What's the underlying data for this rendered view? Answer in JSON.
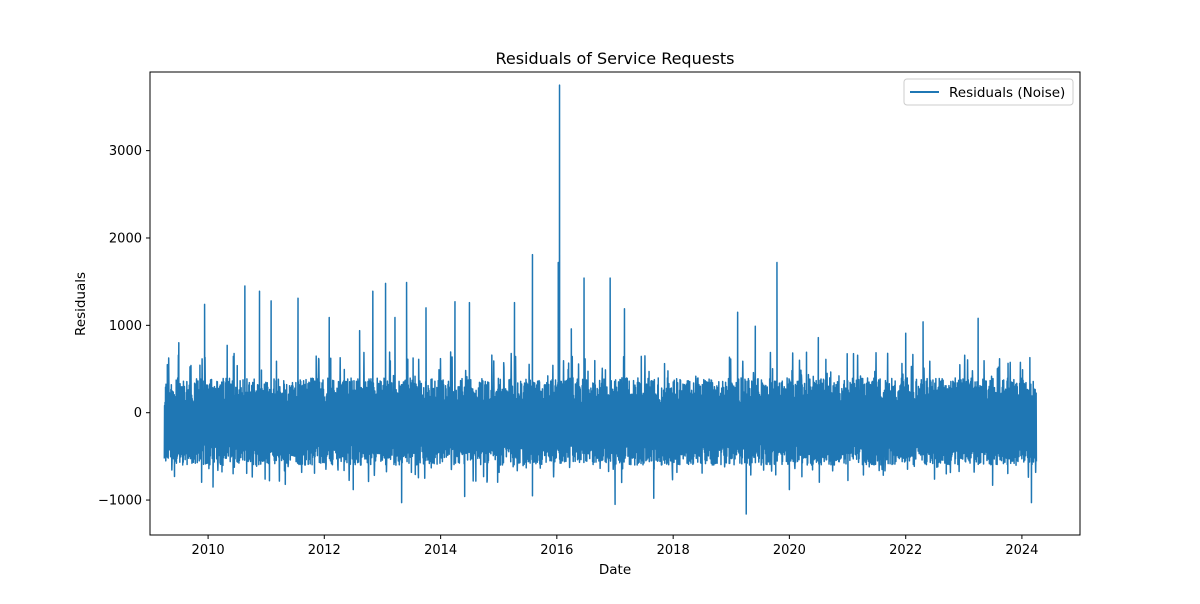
{
  "chart_data": {
    "type": "line",
    "title": "Residuals of Service Requests",
    "xlabel": "Date",
    "ylabel": "Residuals",
    "xlim": [
      "2009-01-01",
      "2024-12-31"
    ],
    "ylim": [
      -1400,
      3900
    ],
    "x_ticks": [
      "2010",
      "2012",
      "2014",
      "2016",
      "2018",
      "2020",
      "2022",
      "2024"
    ],
    "y_ticks": [
      -1000,
      0,
      1000,
      2000,
      3000
    ],
    "y_tick_labels": [
      "−1000",
      "0",
      "1000",
      "2000",
      "3000"
    ],
    "grid": false,
    "legend": {
      "placement": "top-right",
      "entries": [
        "Residuals (Noise)"
      ]
    },
    "series": [
      {
        "name": "Residuals (Noise)",
        "color": "#1f77b4",
        "x_start": "2009-04-01",
        "x_end": "2024-04-01",
        "typical_low": -600,
        "typical_high": 400,
        "peaks": [
          {
            "date": "2009-04-20",
            "value": 550
          },
          {
            "date": "2009-07-01",
            "value": 800
          },
          {
            "date": "2009-12-10",
            "value": 1240
          },
          {
            "date": "2010-05-01",
            "value": 770
          },
          {
            "date": "2010-08-20",
            "value": 1450
          },
          {
            "date": "2010-11-20",
            "value": 1390
          },
          {
            "date": "2011-02-01",
            "value": 1280
          },
          {
            "date": "2011-07-20",
            "value": 1310
          },
          {
            "date": "2012-02-01",
            "value": 1090
          },
          {
            "date": "2012-08-10",
            "value": 940
          },
          {
            "date": "2012-11-01",
            "value": 1390
          },
          {
            "date": "2013-01-20",
            "value": 1480
          },
          {
            "date": "2013-03-20",
            "value": 1090
          },
          {
            "date": "2013-06-01",
            "value": 1490
          },
          {
            "date": "2013-10-01",
            "value": 1200
          },
          {
            "date": "2014-04-01",
            "value": 1270
          },
          {
            "date": "2014-07-01",
            "value": 1260
          },
          {
            "date": "2015-04-10",
            "value": 1260
          },
          {
            "date": "2015-08-01",
            "value": 1810
          },
          {
            "date": "2016-01-10",
            "value": 1720
          },
          {
            "date": "2016-04-01",
            "value": 960
          },
          {
            "date": "2016-06-20",
            "value": 1540
          },
          {
            "date": "2016-01-18",
            "value": 3750
          },
          {
            "date": "2016-12-01",
            "value": 1540
          },
          {
            "date": "2017-03-01",
            "value": 1190
          },
          {
            "date": "2019-02-10",
            "value": 1150
          },
          {
            "date": "2019-06-01",
            "value": 990
          },
          {
            "date": "2019-10-15",
            "value": 1720
          },
          {
            "date": "2020-07-01",
            "value": 860
          },
          {
            "date": "2022-01-01",
            "value": 910
          },
          {
            "date": "2022-04-20",
            "value": 1040
          },
          {
            "date": "2023-04-01",
            "value": 1080
          },
          {
            "date": "2024-02-20",
            "value": 630
          }
        ],
        "troughs": [
          {
            "date": "2010-02-01",
            "value": -850
          },
          {
            "date": "2011-05-01",
            "value": -820
          },
          {
            "date": "2012-07-01",
            "value": -880
          },
          {
            "date": "2013-05-01",
            "value": -1030
          },
          {
            "date": "2014-06-01",
            "value": -960
          },
          {
            "date": "2015-08-01",
            "value": -950
          },
          {
            "date": "2017-01-01",
            "value": -1050
          },
          {
            "date": "2017-09-01",
            "value": -980
          },
          {
            "date": "2019-04-05",
            "value": -1160
          },
          {
            "date": "2020-01-01",
            "value": -880
          },
          {
            "date": "2022-07-01",
            "value": -760
          },
          {
            "date": "2023-07-01",
            "value": -830
          },
          {
            "date": "2024-03-01",
            "value": -1030
          }
        ]
      }
    ]
  }
}
